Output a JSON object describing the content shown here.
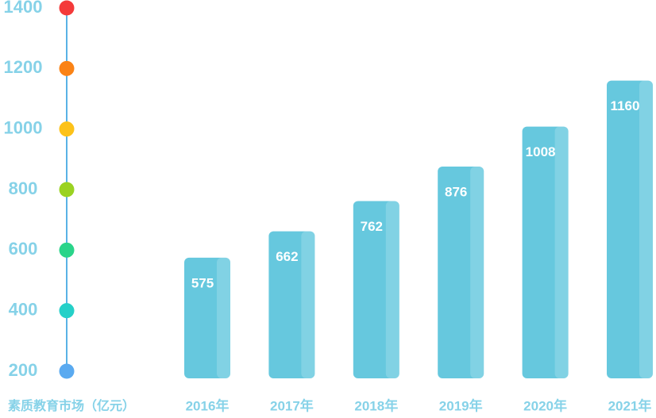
{
  "chart_data": {
    "type": "bar",
    "y_label": "素质教育市场（亿元）",
    "categories": [
      "2016年",
      "2017年",
      "2018年",
      "2019年",
      "2020年",
      "2021年"
    ],
    "values": [
      575,
      662,
      762,
      876,
      1008,
      1160
    ],
    "color": "#66c8de",
    "ylim": [
      200,
      1400
    ],
    "yticks": [
      200,
      400,
      600,
      800,
      1000,
      1200,
      1400
    ],
    "tick_colors": [
      "#5aaaf0",
      "#25d0c8",
      "#2ad48a",
      "#9ad222",
      "#fcc21a",
      "#fa8316",
      "#f43a3a"
    ]
  }
}
